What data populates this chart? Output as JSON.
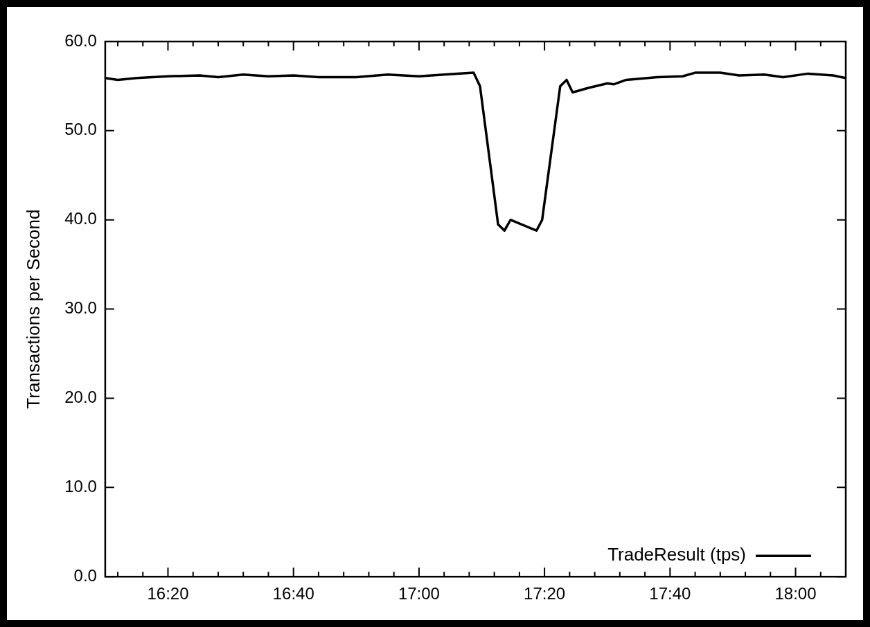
{
  "chart_data": {
    "type": "line",
    "ylabel": "Transactions per Second",
    "legend": "bottom right",
    "grid": false,
    "marker": "none",
    "line_style": "solid",
    "xlim": [
      16.1667,
      18.1333
    ],
    "xticks": [
      {
        "value": 16.2,
        "label": null
      },
      {
        "value": 16.2667,
        "label": null
      },
      {
        "value": 16.3333,
        "label": "16:20"
      },
      {
        "value": 16.4,
        "label": null
      },
      {
        "value": 16.4667,
        "label": null
      },
      {
        "value": 16.5333,
        "label": null
      },
      {
        "value": 16.6,
        "label": null
      },
      {
        "value": 16.6667,
        "label": "16:40"
      },
      {
        "value": 16.7333,
        "label": null
      },
      {
        "value": 16.8,
        "label": null
      },
      {
        "value": 16.8667,
        "label": null
      },
      {
        "value": 16.9333,
        "label": null
      },
      {
        "value": 17.0,
        "label": "17:00"
      },
      {
        "value": 17.0667,
        "label": null
      },
      {
        "value": 17.1333,
        "label": null
      },
      {
        "value": 17.2,
        "label": null
      },
      {
        "value": 17.2667,
        "label": null
      },
      {
        "value": 17.3333,
        "label": "17:20"
      },
      {
        "value": 17.4,
        "label": null
      },
      {
        "value": 17.4667,
        "label": null
      },
      {
        "value": 17.5333,
        "label": null
      },
      {
        "value": 17.6,
        "label": null
      },
      {
        "value": 17.6667,
        "label": "17:40"
      },
      {
        "value": 17.7333,
        "label": null
      },
      {
        "value": 17.8,
        "label": null
      },
      {
        "value": 17.8667,
        "label": null
      },
      {
        "value": 17.9333,
        "label": null
      },
      {
        "value": 18.0,
        "label": "18:00"
      },
      {
        "value": 18.0667,
        "label": null
      }
    ],
    "ylim": [
      0,
      60
    ],
    "yticks": [
      {
        "value": 0,
        "label": "0.0"
      },
      {
        "value": 10,
        "label": "10.0"
      },
      {
        "value": 20,
        "label": "20.0"
      },
      {
        "value": 30,
        "label": "30.0"
      },
      {
        "value": 40,
        "label": "40.0"
      },
      {
        "value": 50,
        "label": "50.0"
      },
      {
        "value": 60,
        "label": "60.0"
      }
    ],
    "series": [
      {
        "name": "TradeResult (tps)",
        "color": "#000000",
        "x": [
          16.167,
          16.2,
          16.25,
          16.333,
          16.417,
          16.467,
          16.533,
          16.6,
          16.667,
          16.733,
          16.833,
          16.917,
          17.0,
          17.067,
          17.145,
          17.162,
          17.21,
          17.227,
          17.243,
          17.312,
          17.327,
          17.375,
          17.392,
          17.408,
          17.45,
          17.5,
          17.517,
          17.55,
          17.633,
          17.7,
          17.733,
          17.8,
          17.85,
          17.917,
          17.967,
          18.033,
          18.1,
          18.133
        ],
        "values": [
          55.9,
          55.7,
          55.9,
          56.1,
          56.2,
          56.0,
          56.3,
          56.1,
          56.2,
          56.0,
          56.0,
          56.3,
          56.1,
          56.3,
          56.5,
          55.0,
          39.5,
          38.8,
          40.0,
          38.8,
          40.0,
          55.0,
          55.7,
          54.3,
          54.8,
          55.3,
          55.2,
          55.7,
          56.0,
          56.1,
          56.5,
          56.5,
          56.2,
          56.3,
          56.0,
          56.4,
          56.2,
          55.9
        ]
      }
    ]
  }
}
